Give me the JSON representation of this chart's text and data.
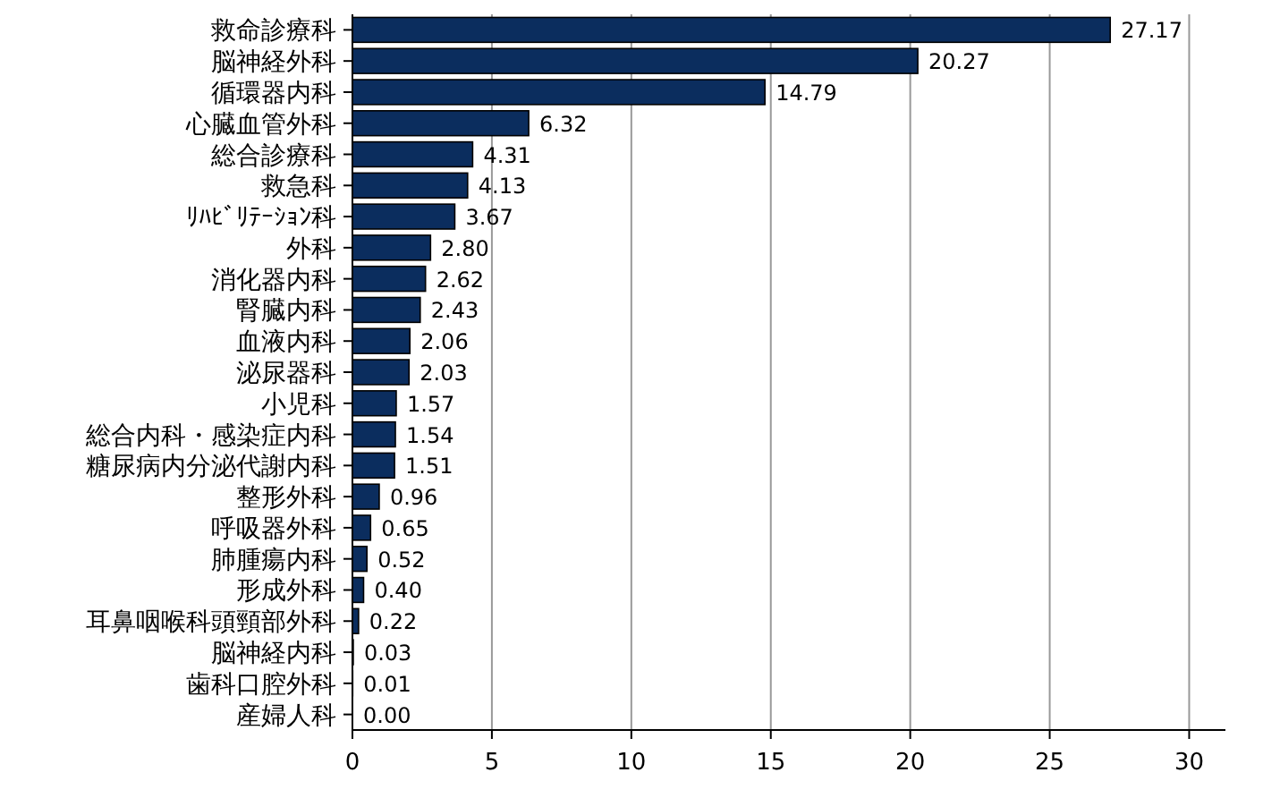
{
  "chart_data": {
    "type": "bar",
    "orientation": "horizontal",
    "categories": [
      "救命診療科",
      "脳神経外科",
      "循環器内科",
      "心臓血管外科",
      "総合診療科",
      "救急科",
      "ﾘﾊﾋﾞﾘﾃｰｼｮﾝ科",
      "外科",
      "消化器内科",
      "腎臓内科",
      "血液内科",
      "泌尿器科",
      "小児科",
      "総合内科・感染症内科",
      "糖尿病内分泌代謝内科",
      "整形外科",
      "呼吸器外科",
      "肺腫瘍内科",
      "形成外科",
      "耳鼻咽喉科頭頸部外科",
      "脳神経内科",
      "歯科口腔外科",
      "産婦人科"
    ],
    "values": [
      27.17,
      20.27,
      14.79,
      6.32,
      4.31,
      4.13,
      3.67,
      2.8,
      2.62,
      2.43,
      2.06,
      2.03,
      1.57,
      1.54,
      1.51,
      0.96,
      0.65,
      0.52,
      0.4,
      0.22,
      0.03,
      0.01,
      0.0
    ],
    "value_labels": [
      "27.17",
      "20.27",
      "14.79",
      "6.32",
      "4.31",
      "4.13",
      "3.67",
      "2.80",
      "2.62",
      "2.43",
      "2.06",
      "2.03",
      "1.57",
      "1.54",
      "1.51",
      "0.96",
      "0.65",
      "0.52",
      "0.40",
      "0.22",
      "0.03",
      "0.01",
      "0.00"
    ],
    "color": "#0b2d5e",
    "xlim": [
      0,
      31.3
    ],
    "xticks": [
      0,
      5,
      10,
      15,
      20,
      25,
      30
    ],
    "grid": "x"
  }
}
